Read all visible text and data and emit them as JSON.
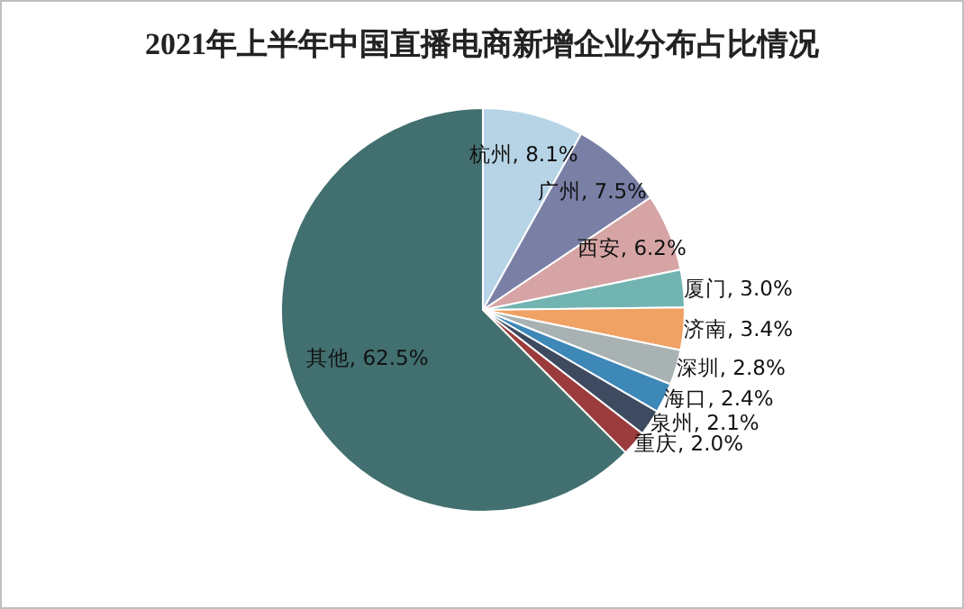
{
  "chart_data": {
    "type": "pie",
    "title": "2021年上半年中国直播电商新增企业分布占比情况",
    "categories": [
      "杭州",
      "广州",
      "西安",
      "厦门",
      "济南",
      "深圳",
      "海口",
      "泉州",
      "重庆",
      "其他"
    ],
    "values": [
      8.1,
      7.5,
      6.2,
      3.0,
      3.4,
      2.8,
      2.4,
      2.1,
      2.0,
      62.5
    ],
    "value_labels": [
      "8.1%",
      "7.5%",
      "6.2%",
      "3.0%",
      "3.4%",
      "2.8%",
      "2.4%",
      "2.1%",
      "2.0%",
      "62.5%"
    ],
    "colors": [
      "#b7d4e6",
      "#7a7fa6",
      "#d6a4a4",
      "#72b4b1",
      "#f0a164",
      "#a9b2b2",
      "#3e88b8",
      "#3d4a5f",
      "#9c3b3b",
      "#426f6f"
    ]
  }
}
